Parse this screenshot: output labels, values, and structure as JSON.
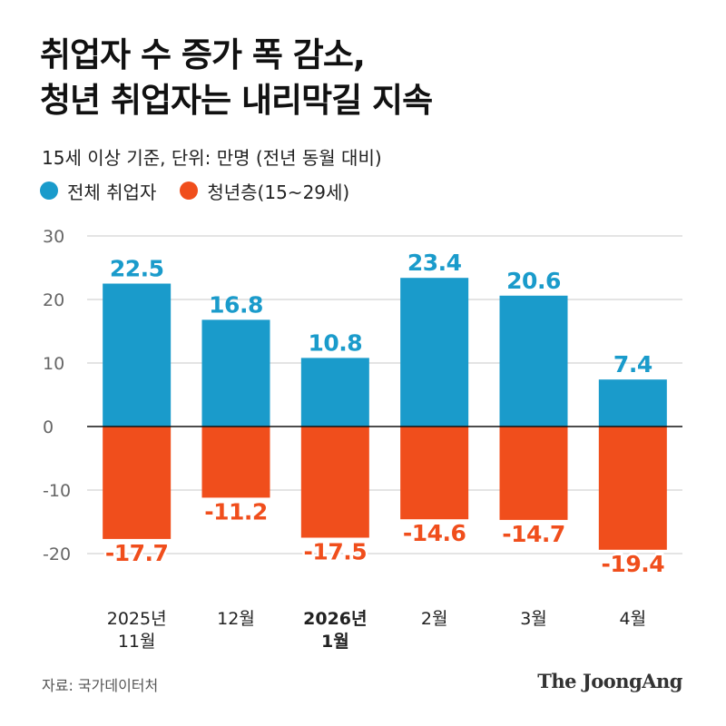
{
  "header": {
    "title_line1": "취업자 수 증가 폭 감소,",
    "title_line2": "청년 취업자는 내리막길 지속",
    "subtitle": "15세 이상 기준, 단위: 만명 (전년 동월 대비)"
  },
  "legend": [
    {
      "label": "전체 취업자",
      "color": "#1a9bcb"
    },
    {
      "label": "청년층(15~29세)",
      "color": "#f04e1c"
    }
  ],
  "chart_data": {
    "type": "bar",
    "categories": [
      {
        "lines": [
          "2025년",
          "11월"
        ],
        "bold": false
      },
      {
        "lines": [
          "12월"
        ],
        "bold": false
      },
      {
        "lines": [
          "2026년",
          "1월"
        ],
        "bold": true
      },
      {
        "lines": [
          "2월"
        ],
        "bold": false
      },
      {
        "lines": [
          "3월"
        ],
        "bold": false
      },
      {
        "lines": [
          "4월"
        ],
        "bold": false
      }
    ],
    "series": [
      {
        "name": "전체 취업자",
        "color": "#1a9bcb",
        "values": [
          22.5,
          16.8,
          10.8,
          23.4,
          20.6,
          7.4
        ]
      },
      {
        "name": "청년층(15~29세)",
        "color": "#f04e1c",
        "values": [
          -17.7,
          -11.2,
          -17.5,
          -14.6,
          -14.7,
          -19.4
        ]
      }
    ],
    "value_labels": {
      "positive": [
        "22.5",
        "16.8",
        "10.8",
        "23.4",
        "20.6",
        "7.4"
      ],
      "negative": [
        "-17.7",
        "-11.2",
        "-17.5",
        "-14.6",
        "-14.7",
        "-19.4"
      ]
    },
    "y_ticks": [
      30,
      20,
      10,
      0,
      -10,
      -20
    ],
    "y_tick_labels": [
      "30",
      "20",
      "10",
      "0",
      "-10",
      "-20"
    ],
    "ylim": [
      -20,
      30
    ],
    "grid": true,
    "stacked": true
  },
  "footer": {
    "source": "자료: 국가데이터처",
    "brand": "The JoongAng"
  }
}
